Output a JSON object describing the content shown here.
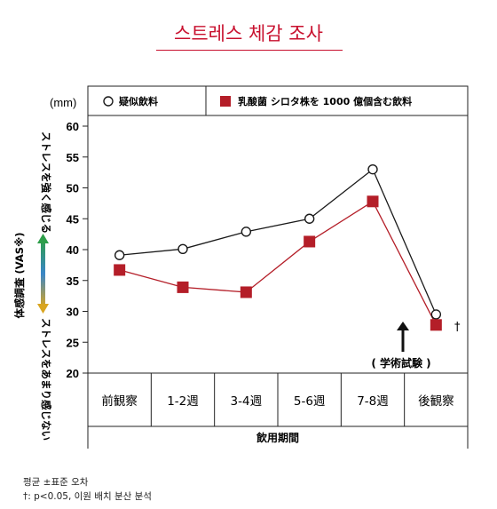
{
  "title": "스트레스 체감 조사",
  "legend": {
    "unit": "(mm)",
    "placebo": "疑似飲料",
    "active": "乳酸菌 シロタ株を 1000 億個含む飲料"
  },
  "y_axis": {
    "label": "体感調査 (VAS※)",
    "top_label": "ストレスを強く感じる",
    "bottom_label": "ストレスをあまり感じない"
  },
  "x_axis": {
    "label": "飲用期間"
  },
  "annotation": "( 学術試験 )",
  "significance_mark": "†",
  "notes": {
    "line1": "평균 ±표준 오차",
    "line2": "†: p<0.05, 이원 배치 분산 분석"
  },
  "colors": {
    "placebo": "#1a1a1a",
    "active": "#b41e28",
    "title": "#c8102e"
  },
  "chart_data": {
    "type": "line",
    "categories": [
      "前観察",
      "1-2週",
      "3-4週",
      "5-6週",
      "7-8週",
      "後観察"
    ],
    "ylim": [
      20,
      60
    ],
    "yticks": [
      20,
      25,
      30,
      35,
      40,
      45,
      50,
      55,
      60
    ],
    "grid": false,
    "series": [
      {
        "name": "疑似飲料",
        "marker": "open-circle",
        "values": [
          39.1,
          40.1,
          42.9,
          45.0,
          53.0,
          29.5
        ]
      },
      {
        "name": "乳酸菌 シロタ株を 1000 億個含む飲料",
        "marker": "filled-square",
        "values": [
          36.7,
          33.9,
          33.1,
          41.3,
          47.8,
          27.8
        ]
      }
    ]
  }
}
